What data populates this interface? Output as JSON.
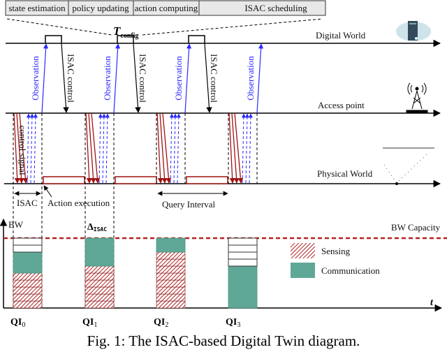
{
  "pipeline_steps": [
    "state estimation",
    "policy updating",
    "action computing",
    "ISAC scheduling"
  ],
  "t_config": {
    "symbol": "T",
    "subscript": "config"
  },
  "layers": {
    "digital": "Digital World",
    "access": "Access point",
    "physical": "Physical World"
  },
  "labels": {
    "observation": "Observation",
    "isac_control": "ISAC control",
    "control_signal": "control signal",
    "isac": "ISAC",
    "action_execution": "Action execution",
    "query_interval": "Query Interval"
  },
  "icons": {
    "digital": "server-cloud-icon",
    "access": "antenna-tower-icon",
    "physical": "physical-object-icon"
  },
  "bandwidth_chart": {
    "ylabel": "BW",
    "xlabel": "t",
    "capacity_label": "BW Capacity",
    "delta_label": {
      "symbol": "Δ",
      "subscript": "ISAC"
    },
    "capacity_units": 10,
    "bars": [
      {
        "label": "QI",
        "sub": "0",
        "sensing": 5,
        "communication": 3,
        "empty": 2
      },
      {
        "label": "QI",
        "sub": "1",
        "sensing": 6,
        "communication": 4,
        "empty": 0
      },
      {
        "label": "QI",
        "sub": "2",
        "sensing": 8,
        "communication": 2,
        "empty": 0
      },
      {
        "label": "QI",
        "sub": "3",
        "sensing": 0,
        "communication": 6,
        "empty": 4
      }
    ],
    "legend": [
      "Sensing",
      "Communication"
    ],
    "colors": {
      "sensing": "#b22222",
      "communication": "#5fa898",
      "capacity": "#b22222",
      "observation": "#2a2aff"
    }
  },
  "caption": "Fig. 1: The ISAC-based Digital Twin diagram."
}
